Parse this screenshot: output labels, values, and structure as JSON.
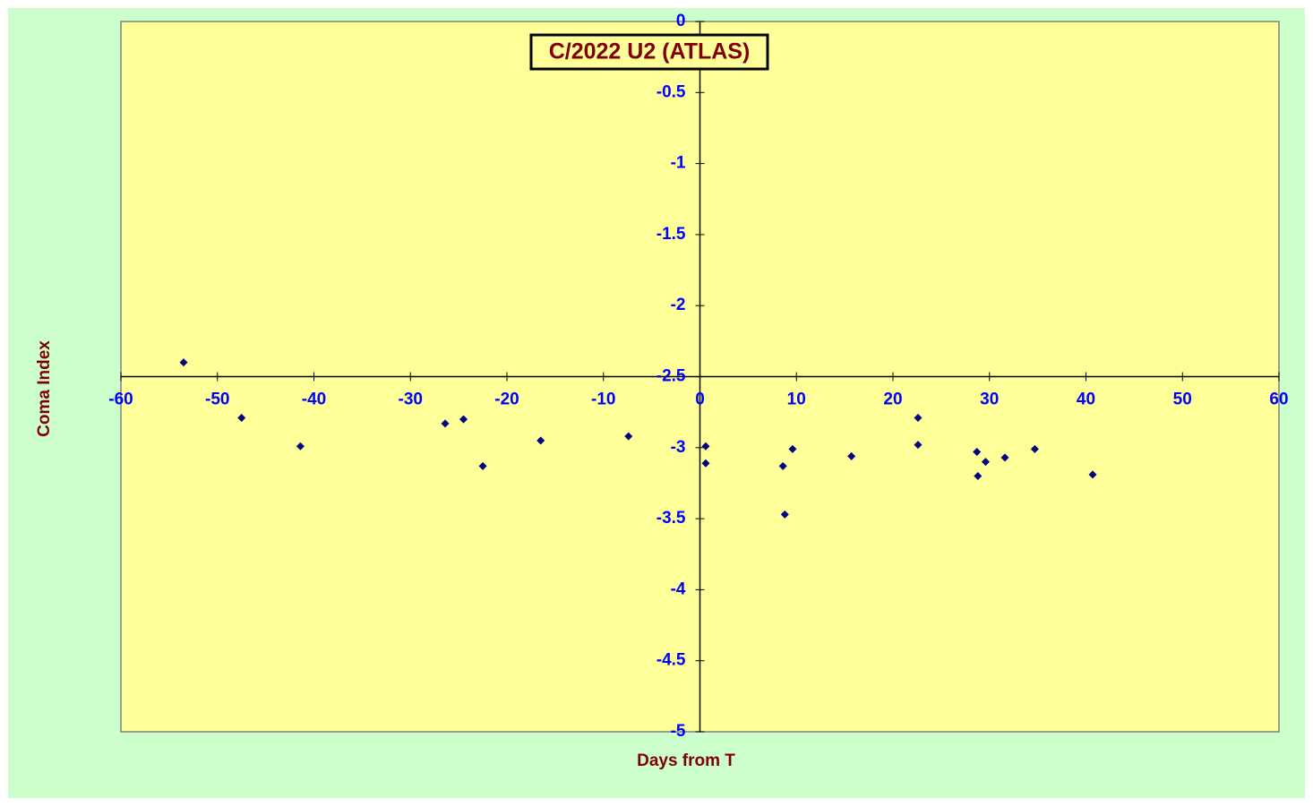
{
  "chart_data": {
    "type": "scatter",
    "title": "C/2022 U2 (ATLAS)",
    "x_label": "Days from T",
    "y_label": "Coma Index",
    "xlim": [
      -60,
      60
    ],
    "ylim": [
      -5,
      0
    ],
    "xticks": [
      -60,
      -50,
      -40,
      -30,
      -20,
      -10,
      0,
      10,
      20,
      30,
      40,
      50,
      60
    ],
    "yticks": [
      0,
      -0.5,
      -1,
      -1.5,
      -2,
      -2.5,
      -3,
      -3.5,
      -4,
      -4.5,
      -5
    ],
    "x_axis_at": -2.5,
    "y_axis_at": 0,
    "grid": false,
    "series": [
      {
        "color": "#000080",
        "x": [
          -53.5,
          -47.5,
          -41.4,
          -26.4,
          -24.5,
          -22.5,
          -16.5,
          -7.4,
          0.6,
          0.6,
          8.6,
          8.8,
          9.6,
          15.7,
          22.6,
          22.6,
          28.7,
          28.8,
          29.6,
          31.6,
          34.7,
          40.7
        ],
        "values": [
          -2.4,
          -2.79,
          -2.99,
          -2.83,
          -2.8,
          -3.13,
          -2.95,
          -2.92,
          -2.99,
          -3.11,
          -3.13,
          -3.47,
          -3.01,
          -3.06,
          -2.79,
          -2.98,
          -3.03,
          -3.2,
          -3.1,
          -3.07,
          -3.01,
          -3.19
        ]
      }
    ]
  }
}
